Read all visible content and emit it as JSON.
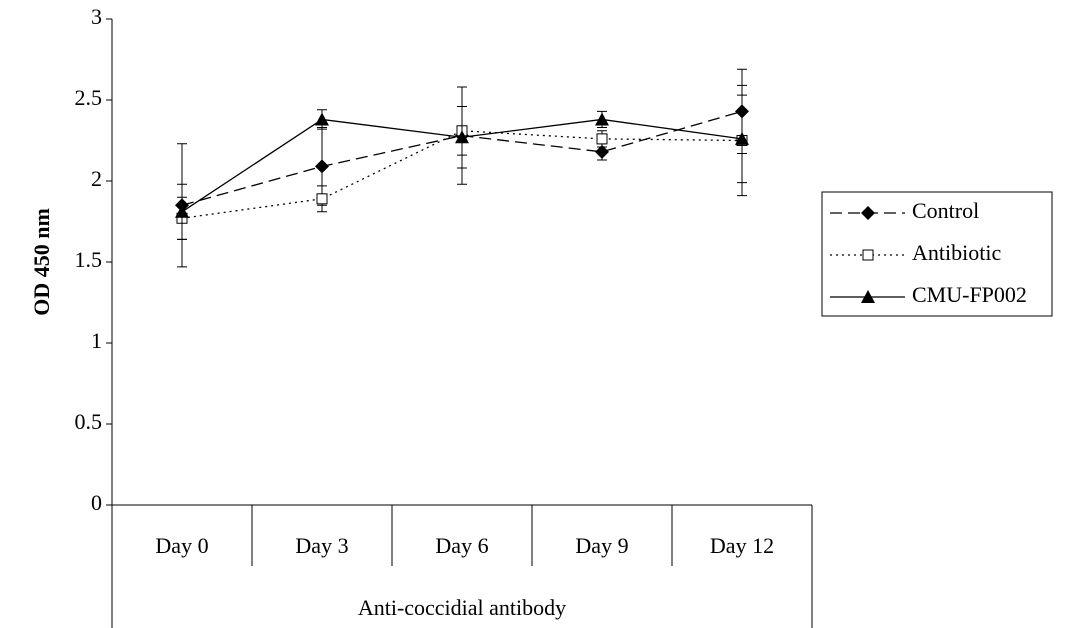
{
  "chart_data": {
    "type": "line",
    "y_label": "OD 450 nm",
    "x_label": "Anti-coccidial antibody",
    "categories": [
      "Day 0",
      "Day 3",
      "Day 6",
      "Day 9",
      "Day 12"
    ],
    "ylim": [
      0,
      3
    ],
    "yticks": [
      0,
      0.5,
      1,
      1.5,
      2,
      2.5,
      3
    ],
    "series": [
      {
        "name": "Control",
        "color": "#000000",
        "line_style": "dashed",
        "marker": "diamond",
        "values": [
          1.85,
          2.09,
          2.28,
          2.18,
          2.43
        ],
        "errors": [
          0.38,
          0.24,
          0.3,
          0.05,
          0.26
        ]
      },
      {
        "name": "Antibiotic",
        "color": "#000000",
        "line_style": "dotted",
        "marker": "square-open",
        "values": [
          1.77,
          1.89,
          2.31,
          2.26,
          2.25
        ],
        "errors": [
          0.13,
          0.08,
          0.15,
          0.05,
          0.34
        ]
      },
      {
        "name": "CMU-FP002",
        "color": "#000000",
        "line_style": "solid",
        "marker": "triangle",
        "values": [
          1.81,
          2.38,
          2.27,
          2.38,
          2.26
        ],
        "errors": [
          0.17,
          0.06,
          0.19,
          0.05,
          0.27
        ]
      }
    ]
  }
}
